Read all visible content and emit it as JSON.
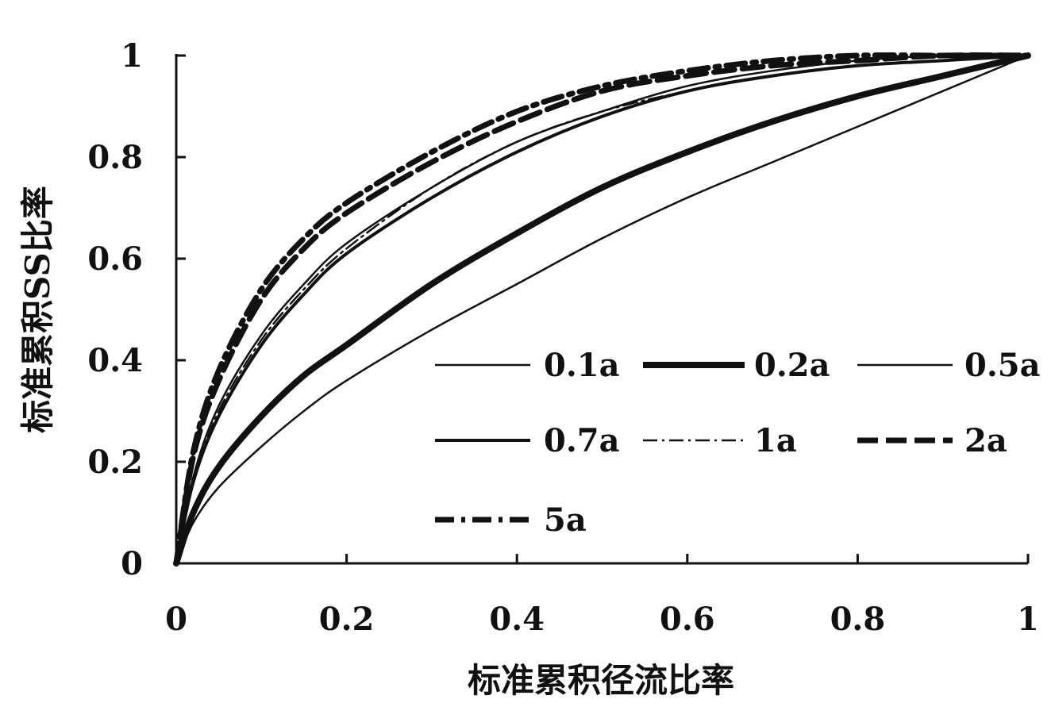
{
  "chart_data": {
    "type": "line",
    "xlabel": "标准累积径流比率",
    "ylabel": "标准累积SS比率",
    "xlim": [
      0,
      1
    ],
    "ylim": [
      0,
      1
    ],
    "x_ticks": [
      "0",
      "0.2",
      "0.4",
      "0.6",
      "0.8",
      "1"
    ],
    "y_ticks": [
      "0",
      "0.2",
      "0.4",
      "0.6",
      "0.8",
      "1"
    ],
    "grid": false,
    "legend_position": "bottom-right",
    "x": [
      0,
      0.02,
      0.05,
      0.1,
      0.15,
      0.2,
      0.3,
      0.4,
      0.5,
      0.6,
      0.7,
      0.8,
      0.9,
      1.0
    ],
    "series": [
      {
        "name": "0.1a",
        "style": "thin-solid",
        "values": [
          0,
          0.08,
          0.15,
          0.23,
          0.3,
          0.36,
          0.46,
          0.55,
          0.64,
          0.72,
          0.79,
          0.86,
          0.93,
          1.0
        ]
      },
      {
        "name": "0.2a",
        "style": "thick-solid",
        "values": [
          0,
          0.1,
          0.19,
          0.29,
          0.37,
          0.43,
          0.55,
          0.65,
          0.74,
          0.81,
          0.87,
          0.92,
          0.96,
          1.0
        ]
      },
      {
        "name": "0.5a",
        "style": "thin-solid",
        "values": [
          0,
          0.17,
          0.31,
          0.45,
          0.55,
          0.63,
          0.74,
          0.83,
          0.89,
          0.94,
          0.97,
          0.99,
          1.0,
          1.0
        ]
      },
      {
        "name": "0.7a",
        "style": "solid",
        "values": [
          0,
          0.16,
          0.29,
          0.43,
          0.53,
          0.61,
          0.72,
          0.81,
          0.88,
          0.93,
          0.96,
          0.98,
          0.99,
          1.0
        ]
      },
      {
        "name": "1a",
        "style": "dash-dot-thin",
        "values": [
          0,
          0.16,
          0.3,
          0.44,
          0.54,
          0.62,
          0.74,
          0.83,
          0.89,
          0.93,
          0.96,
          0.98,
          0.99,
          1.0
        ]
      },
      {
        "name": "2a",
        "style": "thick-dash",
        "values": [
          0,
          0.21,
          0.36,
          0.52,
          0.62,
          0.69,
          0.79,
          0.87,
          0.93,
          0.96,
          0.98,
          0.99,
          1.0,
          1.0
        ]
      },
      {
        "name": "5a",
        "style": "thick-dash-dot",
        "values": [
          0,
          0.22,
          0.38,
          0.54,
          0.64,
          0.71,
          0.81,
          0.89,
          0.94,
          0.97,
          0.99,
          1.0,
          1.0,
          1.0
        ]
      }
    ]
  }
}
